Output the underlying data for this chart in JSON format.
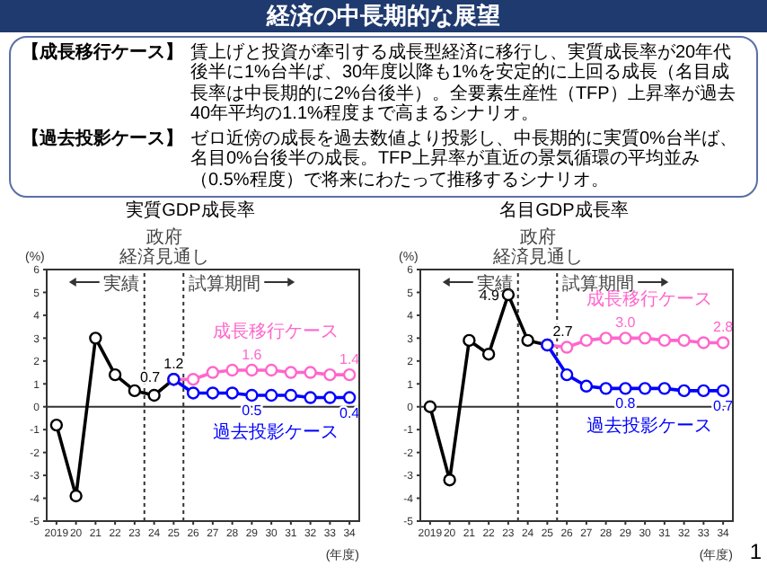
{
  "chart_data": [
    {
      "type": "other",
      "title": "経済の中長期的な展望",
      "annotations": [
        "【成長移行ケース】",
        "賃上げと投資が牽引する成長型経済に移行し、実質成長率が20年代後半に1%台半ば、30年度以降も1%を安定的に上回る成長（名目成長率は中長期的に2%台後半）。全要素生産性（TFP）上昇率が過去40年平均の1.1%程度まで高まるシナリオ。",
        "【過去投影ケース】",
        "ゼロ近傍の成長を過去数値より投影し、中長期的に実質0%台半ば、名目0%台後半の成長。TFP上昇率が直近の景気循環の平均並み（0.5%程度）で将来にわたって推移するシナリオ。",
        "1"
      ]
    },
    {
      "type": "line",
      "title": "実質GDP成長率",
      "xlabel": "(年度)",
      "ylabel": "(%)",
      "marker": "circle",
      "line_style": "solid",
      "grid": false,
      "legend": false,
      "xlim": [
        2018.5,
        2034.5
      ],
      "xticks": [
        2019,
        {
          "value": 2020,
          "label": "20"
        },
        {
          "value": 2021,
          "label": "21"
        },
        {
          "value": 2022,
          "label": "22"
        },
        {
          "value": 2023,
          "label": "23"
        },
        {
          "value": 2024,
          "label": "24"
        },
        {
          "value": 2025,
          "label": "25"
        },
        {
          "value": 2026,
          "label": "26"
        },
        {
          "value": 2027,
          "label": "27"
        },
        {
          "value": 2028,
          "label": "28"
        },
        {
          "value": 2029,
          "label": "29"
        },
        {
          "value": 2030,
          "label": "30"
        },
        {
          "value": 2031,
          "label": "31"
        },
        {
          "value": 2032,
          "label": "32"
        },
        {
          "value": 2033,
          "label": "33"
        },
        {
          "value": 2034,
          "label": "34"
        }
      ],
      "ylim": [
        -5,
        6
      ],
      "yticks": [
        -5,
        -4,
        -3,
        -2,
        -1,
        0,
        1,
        2,
        3,
        4,
        5,
        6
      ],
      "ref_lines": [
        {
          "axis": "y",
          "value": 0,
          "color": "#333333",
          "line_style": "solid"
        },
        {
          "axis": "x",
          "value": 2023.5,
          "color": "#333333",
          "line_style": "dotted"
        },
        {
          "axis": "x",
          "value": 2025.5,
          "color": "#333333",
          "line_style": "dotted"
        }
      ],
      "annotations": [
        "実績",
        "政府",
        "経済見通し",
        "試算期間"
      ],
      "series": [
        {
          "color": "#000000",
          "x": [
            2019,
            2020,
            2021,
            2022,
            2023,
            2024,
            2025
          ],
          "values": [
            -0.8,
            -3.9,
            3.0,
            1.4,
            0.7,
            0.5,
            1.2
          ],
          "value_labels": [
            null,
            null,
            null,
            null,
            "0.7",
            null,
            "1.2"
          ]
        },
        {
          "name": "成長移行ケース",
          "color": "#ff66cc",
          "x": [
            2025,
            2026,
            2027,
            2028,
            2029,
            2030,
            2031,
            2032,
            2033,
            2034
          ],
          "values": [
            1.2,
            1.2,
            1.5,
            1.6,
            1.6,
            1.6,
            1.5,
            1.5,
            1.4,
            1.4
          ],
          "value_labels": [
            null,
            null,
            null,
            null,
            "1.6",
            null,
            null,
            null,
            null,
            "1.4"
          ]
        },
        {
          "name": "過去投影ケース",
          "color": "#0000ff",
          "x": [
            2025,
            2026,
            2027,
            2028,
            2029,
            2030,
            2031,
            2032,
            2033,
            2034
          ],
          "values": [
            1.2,
            0.6,
            0.6,
            0.6,
            0.5,
            0.5,
            0.5,
            0.4,
            0.4,
            0.4
          ],
          "value_labels": [
            null,
            null,
            null,
            null,
            "0.5",
            null,
            null,
            null,
            null,
            "0.4"
          ]
        }
      ]
    },
    {
      "type": "line",
      "title": "名目GDP成長率",
      "xlabel": "(年度)",
      "ylabel": "(%)",
      "marker": "circle",
      "line_style": "solid",
      "grid": false,
      "legend": false,
      "xlim": [
        2018.5,
        2034.5
      ],
      "xticks": [
        2019,
        {
          "value": 2020,
          "label": "20"
        },
        {
          "value": 2021,
          "label": "21"
        },
        {
          "value": 2022,
          "label": "22"
        },
        {
          "value": 2023,
          "label": "23"
        },
        {
          "value": 2024,
          "label": "24"
        },
        {
          "value": 2025,
          "label": "25"
        },
        {
          "value": 2026,
          "label": "26"
        },
        {
          "value": 2027,
          "label": "27"
        },
        {
          "value": 2028,
          "label": "28"
        },
        {
          "value": 2029,
          "label": "29"
        },
        {
          "value": 2030,
          "label": "30"
        },
        {
          "value": 2031,
          "label": "31"
        },
        {
          "value": 2032,
          "label": "32"
        },
        {
          "value": 2033,
          "label": "33"
        },
        {
          "value": 2034,
          "label": "34"
        }
      ],
      "ylim": [
        -5,
        6
      ],
      "yticks": [
        -5,
        -4,
        -3,
        -2,
        -1,
        0,
        1,
        2,
        3,
        4,
        5,
        6
      ],
      "ref_lines": [
        {
          "axis": "y",
          "value": 0,
          "color": "#333333",
          "line_style": "solid"
        },
        {
          "axis": "x",
          "value": 2023.5,
          "color": "#333333",
          "line_style": "dotted"
        },
        {
          "axis": "x",
          "value": 2025.5,
          "color": "#333333",
          "line_style": "dotted"
        }
      ],
      "annotations": [
        "実績",
        "政府",
        "経済見通し",
        "試算期間"
      ],
      "series": [
        {
          "color": "#000000",
          "x": [
            2019,
            2020,
            2021,
            2022,
            2023,
            2024,
            2025
          ],
          "values": [
            0.0,
            -3.2,
            2.9,
            2.3,
            4.9,
            2.9,
            2.7
          ],
          "value_labels": [
            null,
            null,
            null,
            null,
            "4.9",
            null,
            "2.7"
          ]
        },
        {
          "name": "成長移行ケース",
          "color": "#ff66cc",
          "x": [
            2025,
            2026,
            2027,
            2028,
            2029,
            2030,
            2031,
            2032,
            2033,
            2034
          ],
          "values": [
            2.7,
            2.6,
            2.9,
            3.0,
            3.0,
            3.0,
            2.9,
            2.9,
            2.8,
            2.8
          ],
          "value_labels": [
            null,
            null,
            null,
            null,
            "3.0",
            null,
            null,
            null,
            null,
            "2.8"
          ]
        },
        {
          "name": "過去投影ケース",
          "color": "#0000ff",
          "x": [
            2025,
            2026,
            2027,
            2028,
            2029,
            2030,
            2031,
            2032,
            2033,
            2034
          ],
          "values": [
            2.7,
            1.4,
            0.9,
            0.8,
            0.8,
            0.8,
            0.8,
            0.7,
            0.7,
            0.7
          ],
          "value_labels": [
            null,
            null,
            null,
            null,
            "0.8",
            null,
            null,
            null,
            null,
            "0.7"
          ]
        }
      ]
    }
  ]
}
